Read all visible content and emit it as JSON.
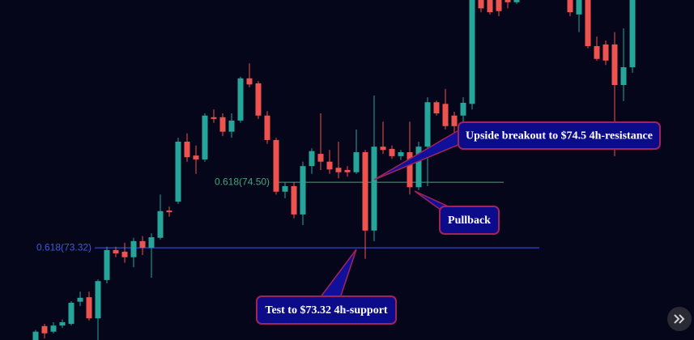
{
  "chart_data": {
    "type": "candlestick",
    "up_color": "#26a69a",
    "down_color": "#ef5350",
    "ylim": [
      71.66,
      77.78
    ],
    "open": [
      71.66,
      71.91,
      71.81,
      71.92,
      71.95,
      72.35,
      72.43,
      72.05,
      72.74,
      73.28,
      73.25,
      73.15,
      73.44,
      73.32,
      73.5,
      73.99,
      74.15,
      75.23,
      74.98,
      74.91,
      75.67,
      75.67,
      75.41,
      75.61,
      76.37,
      76.28,
      75.7,
      75.26,
      74.33,
      74.43,
      73.92,
      74.79,
      75.01,
      74.87,
      74.76,
      74.72,
      74.68,
      75.04,
      73.63,
      75.14,
      75.1,
      74.97,
      75.04,
      74.41,
      75.14,
      75.94,
      75.91,
      75.7,
      75.7,
      75.91,
      77.85,
      77.78,
      77.78,
      77.82,
      77.74,
      78.0,
      78.3,
      78.1,
      78.4,
      77.95,
      77.93,
      77.52,
      77.85,
      76.95,
      76.98,
      76.98,
      76.25,
      76.57
    ],
    "high": [
      71.84,
      71.95,
      71.98,
      72.03,
      72.36,
      72.53,
      72.53,
      72.75,
      73.34,
      73.34,
      73.41,
      73.5,
      73.53,
      73.58,
      74.28,
      74.06,
      75.3,
      75.38,
      75.16,
      75.74,
      75.81,
      75.74,
      75.74,
      76.4,
      76.64,
      76.32,
      75.78,
      75.3,
      74.5,
      74.5,
      74.87,
      75.11,
      75.74,
      75.08,
      75.23,
      74.79,
      75.45,
      75.08,
      76.06,
      75.59,
      75.16,
      75.08,
      75.59,
      75.23,
      76.03,
      75.97,
      76.18,
      75.77,
      76.03,
      78.22,
      77.93,
      77.85,
      77.85,
      77.9,
      77.93,
      78.45,
      78.5,
      78.5,
      78.5,
      78.3,
      78.0,
      78.0,
      77.93,
      77.12,
      77.05,
      77.2,
      77.27,
      78.22
    ],
    "low": [
      71.66,
      71.69,
      71.78,
      71.88,
      71.92,
      72.27,
      72.01,
      71.66,
      72.68,
      73.15,
      73.05,
      72.97,
      73.19,
      72.78,
      73.47,
      73.88,
      74.11,
      74.87,
      74.65,
      74.87,
      75.57,
      75.33,
      75.3,
      75.57,
      76.21,
      75.64,
      75.19,
      74.28,
      74.21,
      73.85,
      73.73,
      74.65,
      74.72,
      74.65,
      74.57,
      74.6,
      74.65,
      73.12,
      73.44,
      75.01,
      74.92,
      74.9,
      74.28,
      74.36,
      74.43,
      75.7,
      75.45,
      75.38,
      75.59,
      75.81,
      77.56,
      77.52,
      77.49,
      77.63,
      77.71,
      77.9,
      78.0,
      78.0,
      77.9,
      77.85,
      77.49,
      77.2,
      76.91,
      76.69,
      76.61,
      74.97,
      75.96,
      76.47
    ],
    "close": [
      71.81,
      71.78,
      71.92,
      71.98,
      72.33,
      72.42,
      72.05,
      72.72,
      73.28,
      73.22,
      73.15,
      73.44,
      73.32,
      73.51,
      73.98,
      73.96,
      75.23,
      74.95,
      74.91,
      75.7,
      75.64,
      75.41,
      75.61,
      76.37,
      76.26,
      75.7,
      75.26,
      74.33,
      74.43,
      73.92,
      74.79,
      75.06,
      74.87,
      74.73,
      74.68,
      74.68,
      75.04,
      73.63,
      75.14,
      75.08,
      74.97,
      75.04,
      74.41,
      75.14,
      75.94,
      75.74,
      75.51,
      75.51,
      75.93,
      78.07,
      77.63,
      77.56,
      77.58,
      77.74,
      77.85,
      78.3,
      78.1,
      78.4,
      77.95,
      78.2,
      77.56,
      77.93,
      76.95,
      76.72,
      76.69,
      76.25,
      76.57,
      78.07
    ],
    "levels": [
      {
        "label": "0.618(74.50)",
        "value": 74.5,
        "color": "#3fa87a"
      },
      {
        "label": "0.618(73.32)",
        "value": 73.32,
        "color": "#3b5bdb"
      }
    ],
    "annotations": [
      "Upside breakout to $74.5 4h-resistance",
      "Pullback",
      "Test to $73.32 4h-support"
    ]
  }
}
